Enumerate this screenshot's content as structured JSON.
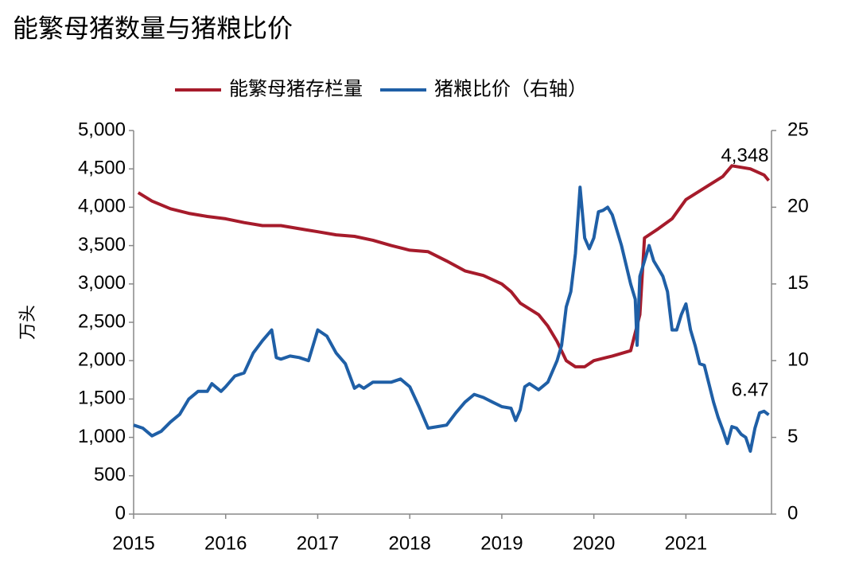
{
  "chart_data": {
    "type": "line",
    "title": "能繁母猪数量与猪粮比价",
    "y_label": "万头",
    "xlim": [
      2015,
      2021.93
    ],
    "xticks": [
      2015,
      2016,
      2017,
      2018,
      2019,
      2020,
      2021
    ],
    "ylim": [
      0,
      5000
    ],
    "yticks": [
      0,
      500,
      {
        "value": 1000,
        "label": "1,000"
      },
      {
        "value": 1500,
        "label": "1,500"
      },
      {
        "value": 2000,
        "label": "2,000"
      },
      {
        "value": 2500,
        "label": "2,500"
      },
      {
        "value": 3000,
        "label": "3,000"
      },
      {
        "value": 3500,
        "label": "3,500"
      },
      {
        "value": 4000,
        "label": "4,000"
      },
      {
        "value": 4500,
        "label": "4,500"
      },
      {
        "value": 5000,
        "label": "5,000"
      }
    ],
    "y2lim": [
      0,
      25
    ],
    "y2ticks": [
      0,
      5,
      10,
      15,
      20,
      25
    ],
    "grid": false,
    "series": [
      {
        "name": "能繁母猪存栏量",
        "color": "#a61b2b",
        "axis": "y",
        "end_label": "4,348",
        "x": [
          2015.05,
          2015.2,
          2015.4,
          2015.6,
          2015.8,
          2016.0,
          2016.2,
          2016.4,
          2016.6,
          2016.8,
          2017.0,
          2017.2,
          2017.4,
          2017.6,
          2017.8,
          2018.0,
          2018.2,
          2018.4,
          2018.6,
          2018.8,
          2019.0,
          2019.1,
          2019.2,
          2019.4,
          2019.5,
          2019.6,
          2019.7,
          2019.8,
          2019.9,
          2020.0,
          2020.2,
          2020.4,
          2020.5,
          2020.55,
          2020.7,
          2020.85,
          2021.0,
          2021.2,
          2021.4,
          2021.5,
          2021.7,
          2021.85,
          2021.9
        ],
        "values": [
          4190,
          4080,
          3980,
          3920,
          3880,
          3850,
          3800,
          3760,
          3760,
          3720,
          3680,
          3640,
          3620,
          3570,
          3500,
          3440,
          3420,
          3300,
          3170,
          3110,
          3000,
          2900,
          2750,
          2600,
          2450,
          2250,
          2000,
          1920,
          1920,
          2000,
          2060,
          2130,
          2600,
          3600,
          3720,
          3850,
          4100,
          4250,
          4400,
          4540,
          4500,
          4420,
          4348
        ]
      },
      {
        "name": "猪粮比价（右轴）",
        "color": "#1f5fa6",
        "axis": "y2",
        "end_label": "6.47",
        "x": [
          2015.0,
          2015.1,
          2015.2,
          2015.3,
          2015.4,
          2015.5,
          2015.6,
          2015.7,
          2015.8,
          2015.85,
          2015.95,
          2016.0,
          2016.1,
          2016.2,
          2016.3,
          2016.4,
          2016.5,
          2016.55,
          2016.6,
          2016.7,
          2016.8,
          2016.9,
          2017.0,
          2017.1,
          2017.2,
          2017.3,
          2017.4,
          2017.45,
          2017.5,
          2017.6,
          2017.7,
          2017.8,
          2017.9,
          2018.0,
          2018.1,
          2018.2,
          2018.3,
          2018.4,
          2018.5,
          2018.6,
          2018.7,
          2018.8,
          2018.9,
          2019.0,
          2019.1,
          2019.15,
          2019.2,
          2019.25,
          2019.3,
          2019.4,
          2019.5,
          2019.6,
          2019.65,
          2019.7,
          2019.75,
          2019.8,
          2019.85,
          2019.9,
          2019.95,
          2020.0,
          2020.05,
          2020.1,
          2020.15,
          2020.2,
          2020.3,
          2020.4,
          2020.45,
          2020.47,
          2020.5,
          2020.55,
          2020.6,
          2020.65,
          2020.7,
          2020.75,
          2020.8,
          2020.85,
          2020.9,
          2020.95,
          2021.0,
          2021.05,
          2021.1,
          2021.15,
          2021.2,
          2021.25,
          2021.3,
          2021.35,
          2021.4,
          2021.45,
          2021.5,
          2021.55,
          2021.6,
          2021.65,
          2021.7,
          2021.75,
          2021.8,
          2021.85,
          2021.9
        ],
        "values": [
          5.8,
          5.6,
          5.1,
          5.4,
          6.0,
          6.5,
          7.5,
          8.0,
          8.0,
          8.5,
          8.0,
          8.3,
          9.0,
          9.2,
          10.5,
          11.3,
          12.0,
          10.2,
          10.1,
          10.3,
          10.2,
          10.0,
          12.0,
          11.6,
          10.5,
          9.8,
          8.2,
          8.4,
          8.2,
          8.6,
          8.6,
          8.6,
          8.8,
          8.3,
          7.0,
          5.6,
          5.7,
          5.8,
          6.6,
          7.3,
          7.8,
          7.6,
          7.3,
          7.0,
          6.9,
          6.1,
          6.8,
          8.3,
          8.5,
          8.1,
          8.6,
          10.0,
          11.0,
          13.5,
          14.5,
          17.0,
          21.3,
          18.0,
          17.3,
          18.0,
          19.7,
          19.8,
          20.0,
          19.5,
          17.5,
          15.0,
          14.0,
          11.0,
          15.5,
          16.5,
          17.5,
          16.5,
          16.0,
          15.5,
          14.5,
          12.0,
          12.0,
          13.0,
          13.7,
          12.0,
          11.0,
          9.8,
          9.7,
          8.5,
          7.3,
          6.3,
          5.5,
          4.6,
          5.7,
          5.6,
          5.2,
          5.0,
          4.1,
          5.6,
          6.6,
          6.7,
          6.47
        ]
      }
    ]
  }
}
